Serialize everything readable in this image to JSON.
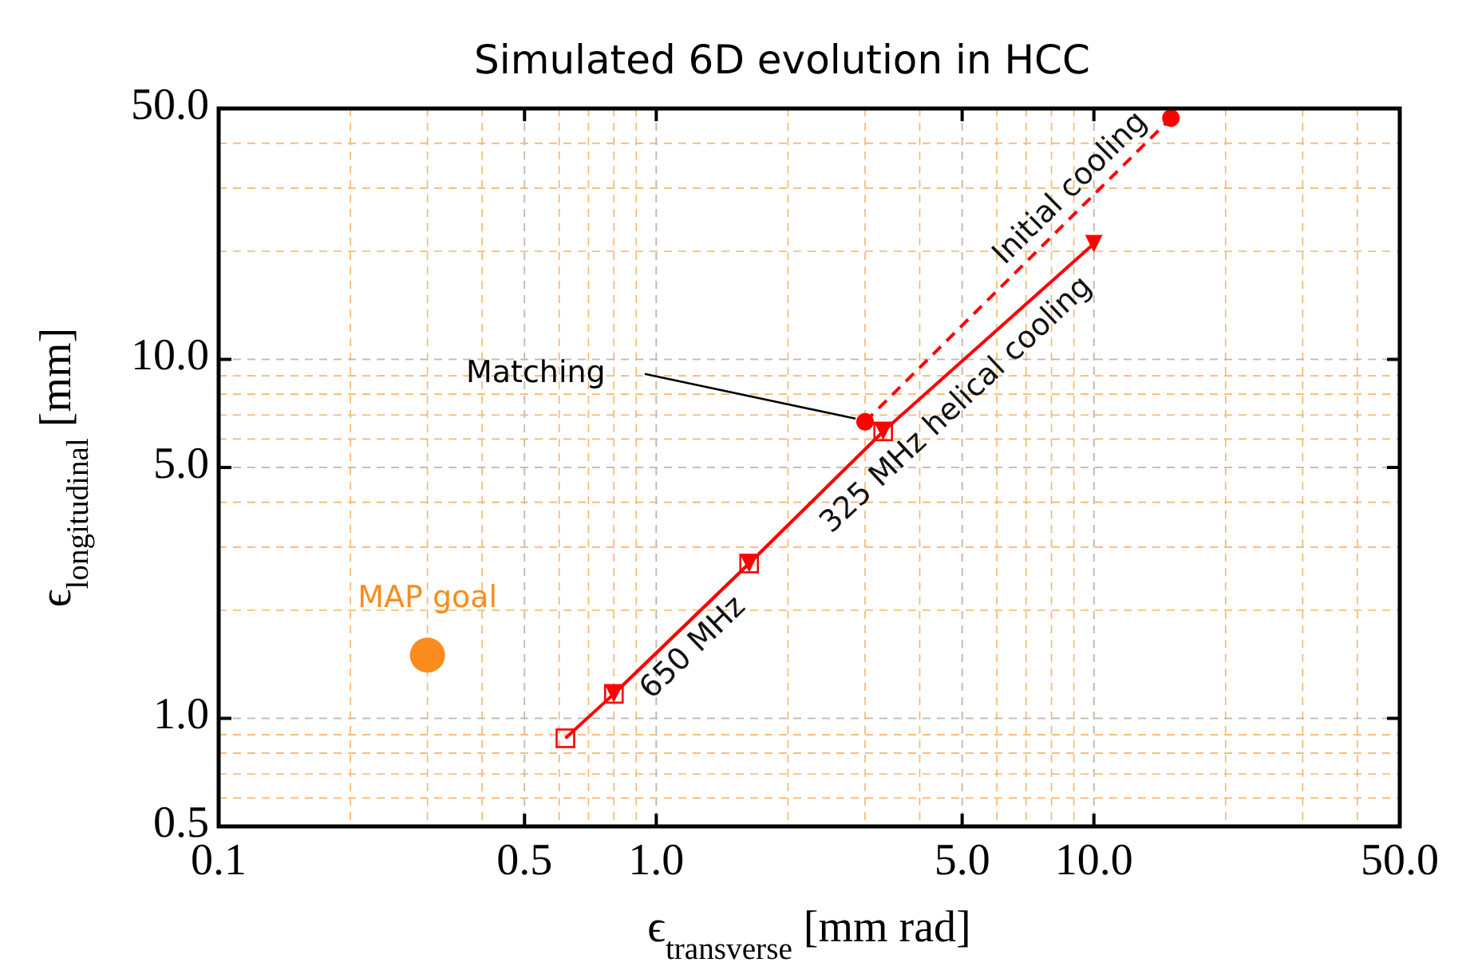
{
  "chart_data": {
    "type": "line",
    "title": "Simulated 6D evolution in HCC",
    "xlabel": "ϵ$_{transverse}$ [mm rad]",
    "ylabel": "ϵ$_{longitudinal}$ [mm]",
    "log": "xy",
    "grid": true,
    "xlim": [
      0.1,
      50
    ],
    "ylim": [
      0.5,
      50
    ],
    "xticks": [
      0.1,
      0.5,
      {
        "value": 1,
        "label": "1.0"
      },
      {
        "value": 5,
        "label": "5.0"
      },
      {
        "value": 10,
        "label": "10.0"
      },
      {
        "value": 50,
        "label": "50.0"
      }
    ],
    "yticks": [
      0.5,
      {
        "value": 1,
        "label": "1.0"
      },
      {
        "value": 5,
        "label": "5.0"
      },
      {
        "value": 10,
        "label": "10.0"
      },
      {
        "value": 50,
        "label": "50.0"
      }
    ],
    "series": [
      {
        "name": "Initial cooling",
        "color": "#ff0000",
        "x": [
          3.0,
          15
        ],
        "values": [
          6.7,
          47
        ],
        "line_style": "dashed",
        "marker": "circle"
      },
      {
        "name": "325 MHz helical cooling",
        "color": "#ff0000",
        "x": [
          0.8,
          1.63,
          3.3,
          10
        ],
        "values": [
          1.17,
          2.7,
          6.3,
          21
        ],
        "line_style": "solid",
        "marker": "triangle"
      },
      {
        "name": "650 MHz",
        "color": "#ff0000",
        "x": [
          0.62,
          0.8,
          1.63,
          3.3
        ],
        "values": [
          0.88,
          1.17,
          2.7,
          6.3
        ],
        "line_style": "solid",
        "marker": "square"
      },
      {
        "name": "MAP goal",
        "type": "scatter",
        "color": "#f98c1c",
        "x": [
          0.3
        ],
        "values": [
          1.5
        ],
        "marker": "circle"
      }
    ],
    "annotations": [
      {
        "text": "Matching",
        "x": 3.0,
        "y": 6.7
      }
    ]
  }
}
